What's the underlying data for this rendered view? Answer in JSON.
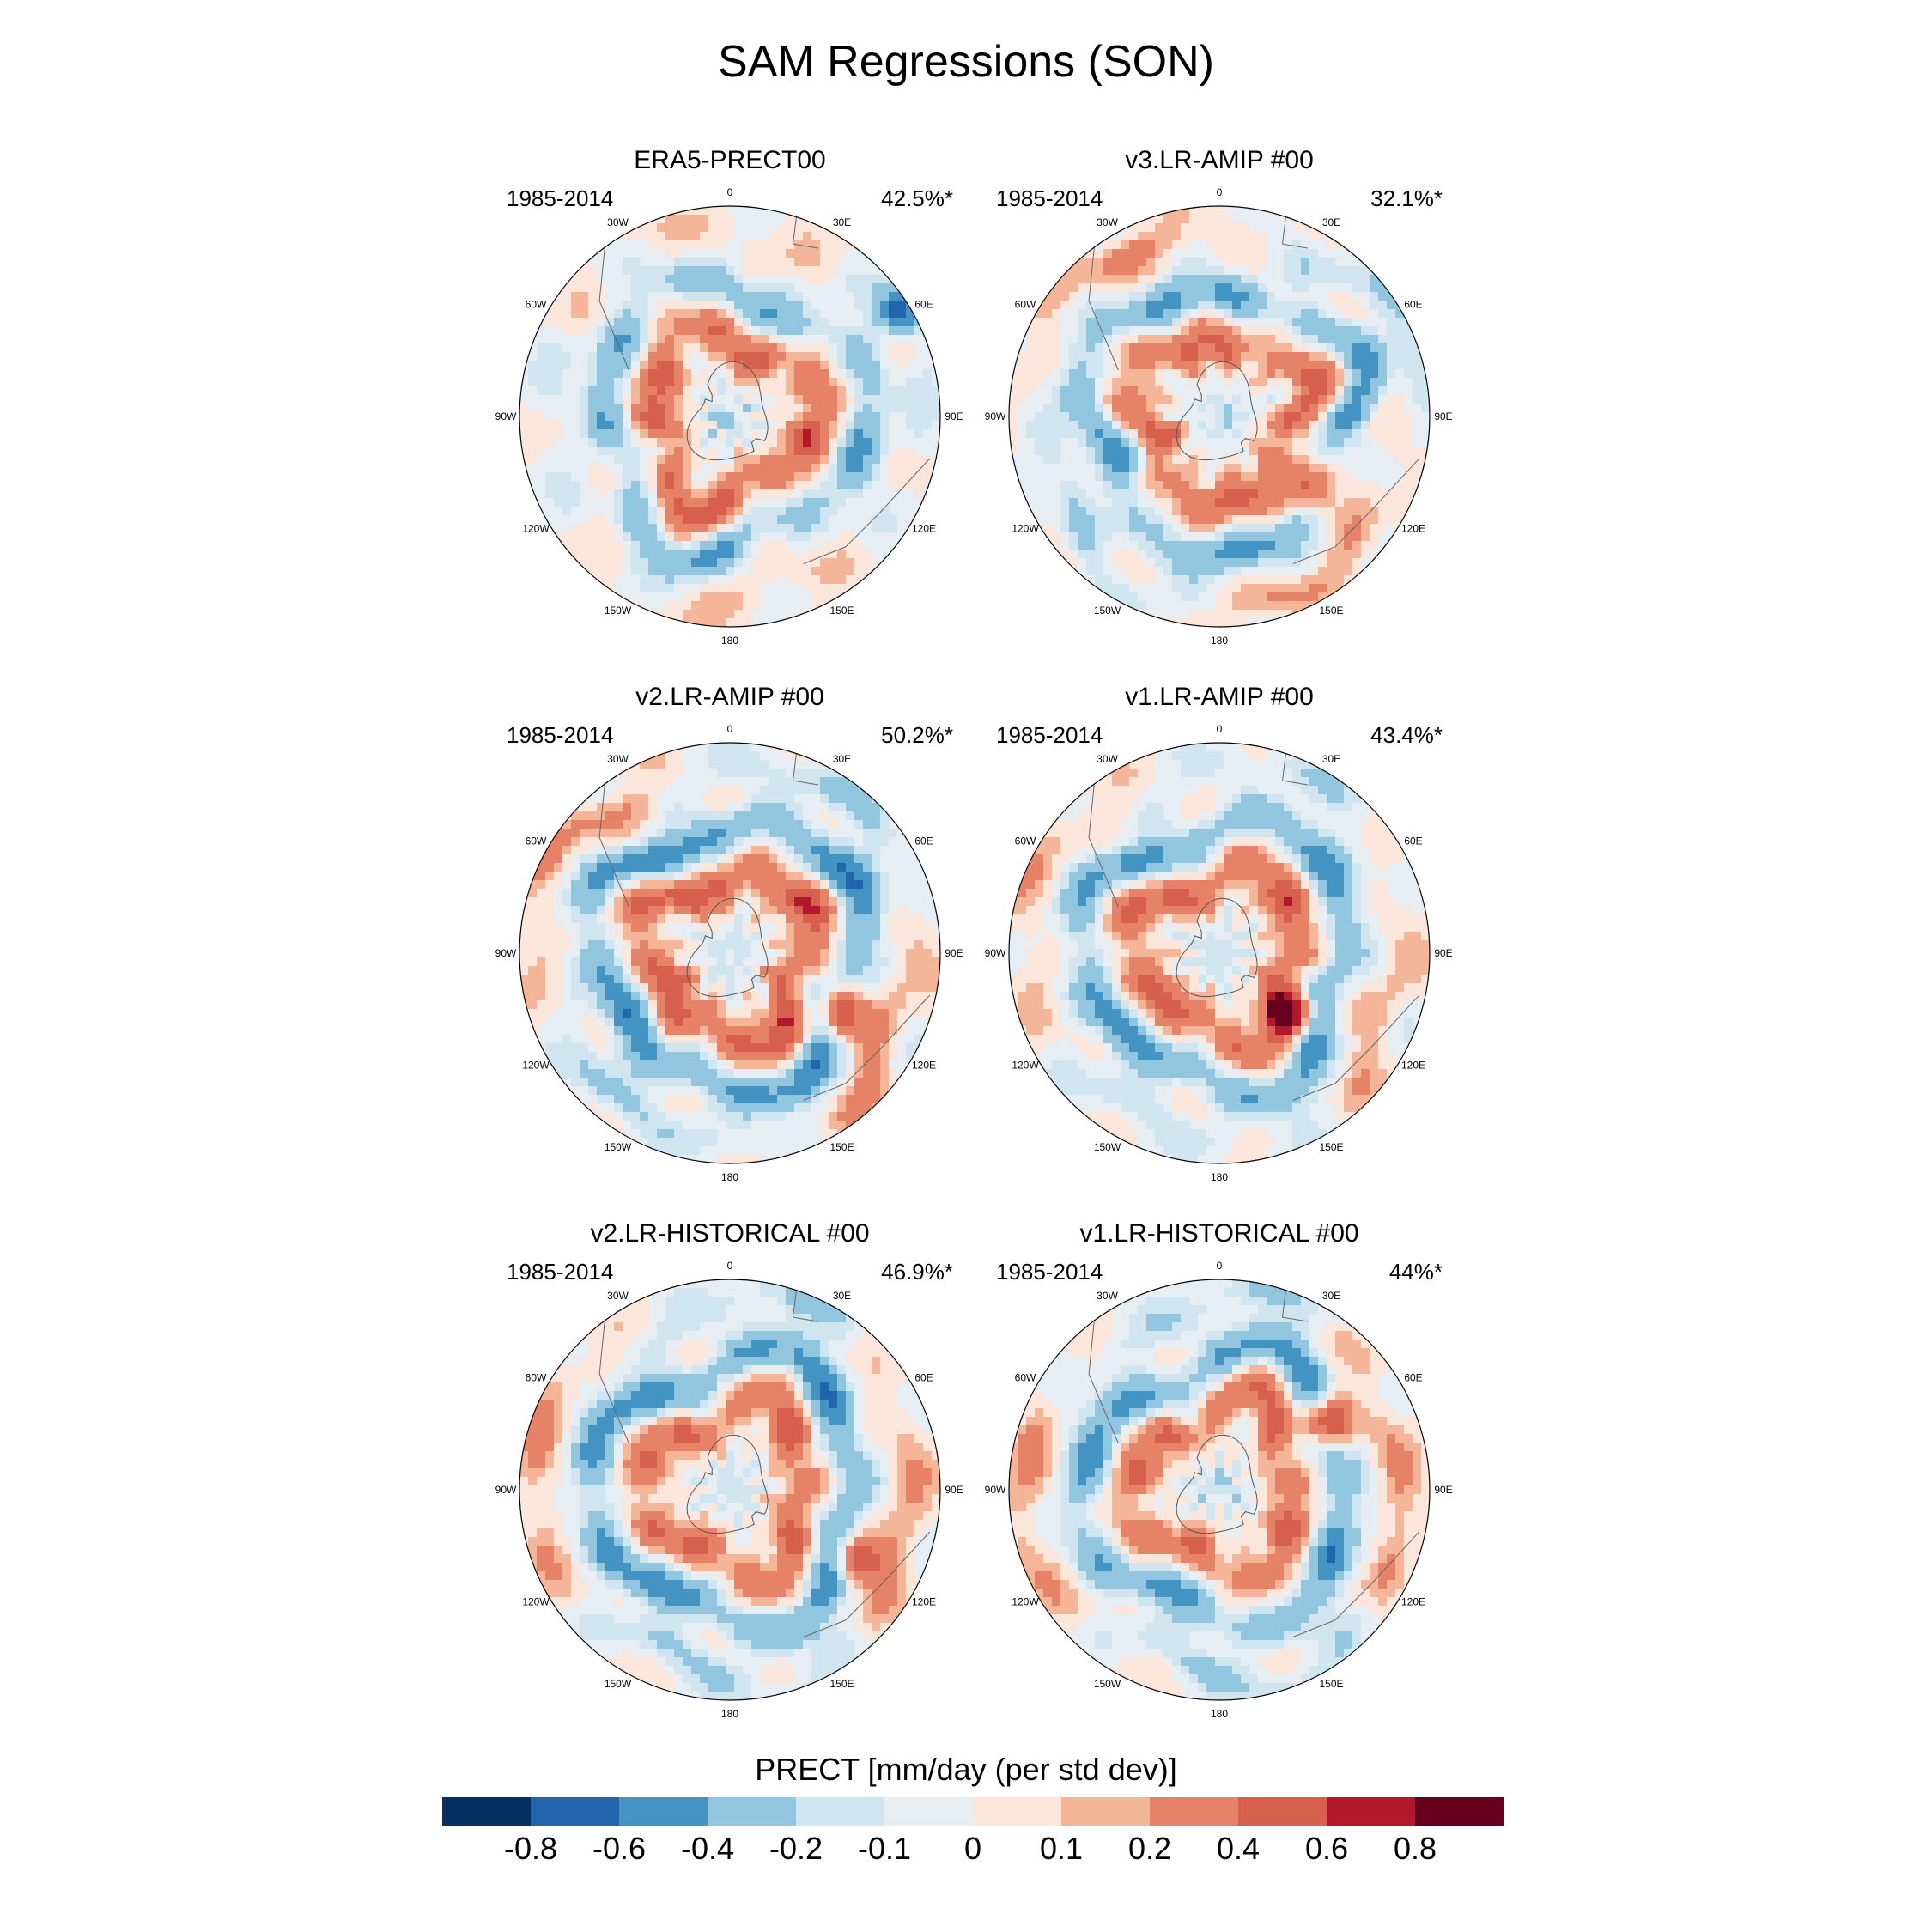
{
  "title": "SAM Regressions (SON)",
  "panels": [
    {
      "name": "ERA5-PRECT00",
      "period": "1985-2014",
      "percent": "42.5%*",
      "pattern": {
        "inner": 0.45,
        "mid": -0.35,
        "outer": 0.1,
        "phase": 0.3,
        "blob": [
          0.95,
          -0.9
        ]
      }
    },
    {
      "name": "v3.LR-AMIP  #00",
      "period": "1985-2014",
      "percent": "32.1%*",
      "pattern": {
        "inner": 0.4,
        "mid": -0.4,
        "outer": 0.25,
        "phase": 1.4,
        "blob": [
          0.5,
          0.6
        ]
      }
    },
    {
      "name": "v2.LR-AMIP  #00",
      "period": "1985-2014",
      "percent": "50.2%*",
      "pattern": {
        "inner": 0.5,
        "mid": -0.5,
        "outer": 0.3,
        "phase": 2.2,
        "blob": [
          0.6,
          0.5
        ]
      }
    },
    {
      "name": "v1.LR-AMIP  #00",
      "period": "1985-2014",
      "percent": "43.4%*",
      "pattern": {
        "inner": 0.45,
        "mid": -0.45,
        "outer": 0.2,
        "phase": 2.6,
        "blob": [
          0.4,
          0.5
        ]
      }
    },
    {
      "name": "v2.LR-HISTORICAL  #00",
      "period": "1985-2014",
      "percent": "46.9%*",
      "pattern": {
        "inner": 0.4,
        "mid": -0.5,
        "outer": 0.3,
        "phase": 3.0,
        "blob": [
          0.7,
          0.6
        ]
      }
    },
    {
      "name": "v1.LR-HISTORICAL  #00",
      "period": "1985-2014",
      "percent": "44%*",
      "pattern": {
        "inner": 0.4,
        "mid": -0.45,
        "outer": 0.3,
        "phase": 3.4,
        "blob": [
          0.6,
          -0.6
        ]
      }
    }
  ],
  "lon_labels": [
    "0",
    "30E",
    "60E",
    "90E",
    "120E",
    "150E",
    "180",
    "150W",
    "120W",
    "90W",
    "60W",
    "30W"
  ],
  "colorbar": {
    "title": "PRECT [mm/day (per std dev)]",
    "levels": [
      "-0.8",
      "-0.6",
      "-0.4",
      "-0.2",
      "-0.1",
      "0",
      "0.1",
      "0.2",
      "0.4",
      "0.6",
      "0.8"
    ],
    "level_values": [
      -0.8,
      -0.6,
      -0.4,
      -0.2,
      -0.1,
      0,
      0.1,
      0.2,
      0.4,
      0.6,
      0.8
    ],
    "colors": [
      "#053061",
      "#2166ac",
      "#4393c3",
      "#92c5de",
      "#d1e5f0",
      "#e6eef4",
      "#fbe6dc",
      "#f4b598",
      "#e58267",
      "#d6604d",
      "#b2182b",
      "#67001f"
    ]
  }
}
